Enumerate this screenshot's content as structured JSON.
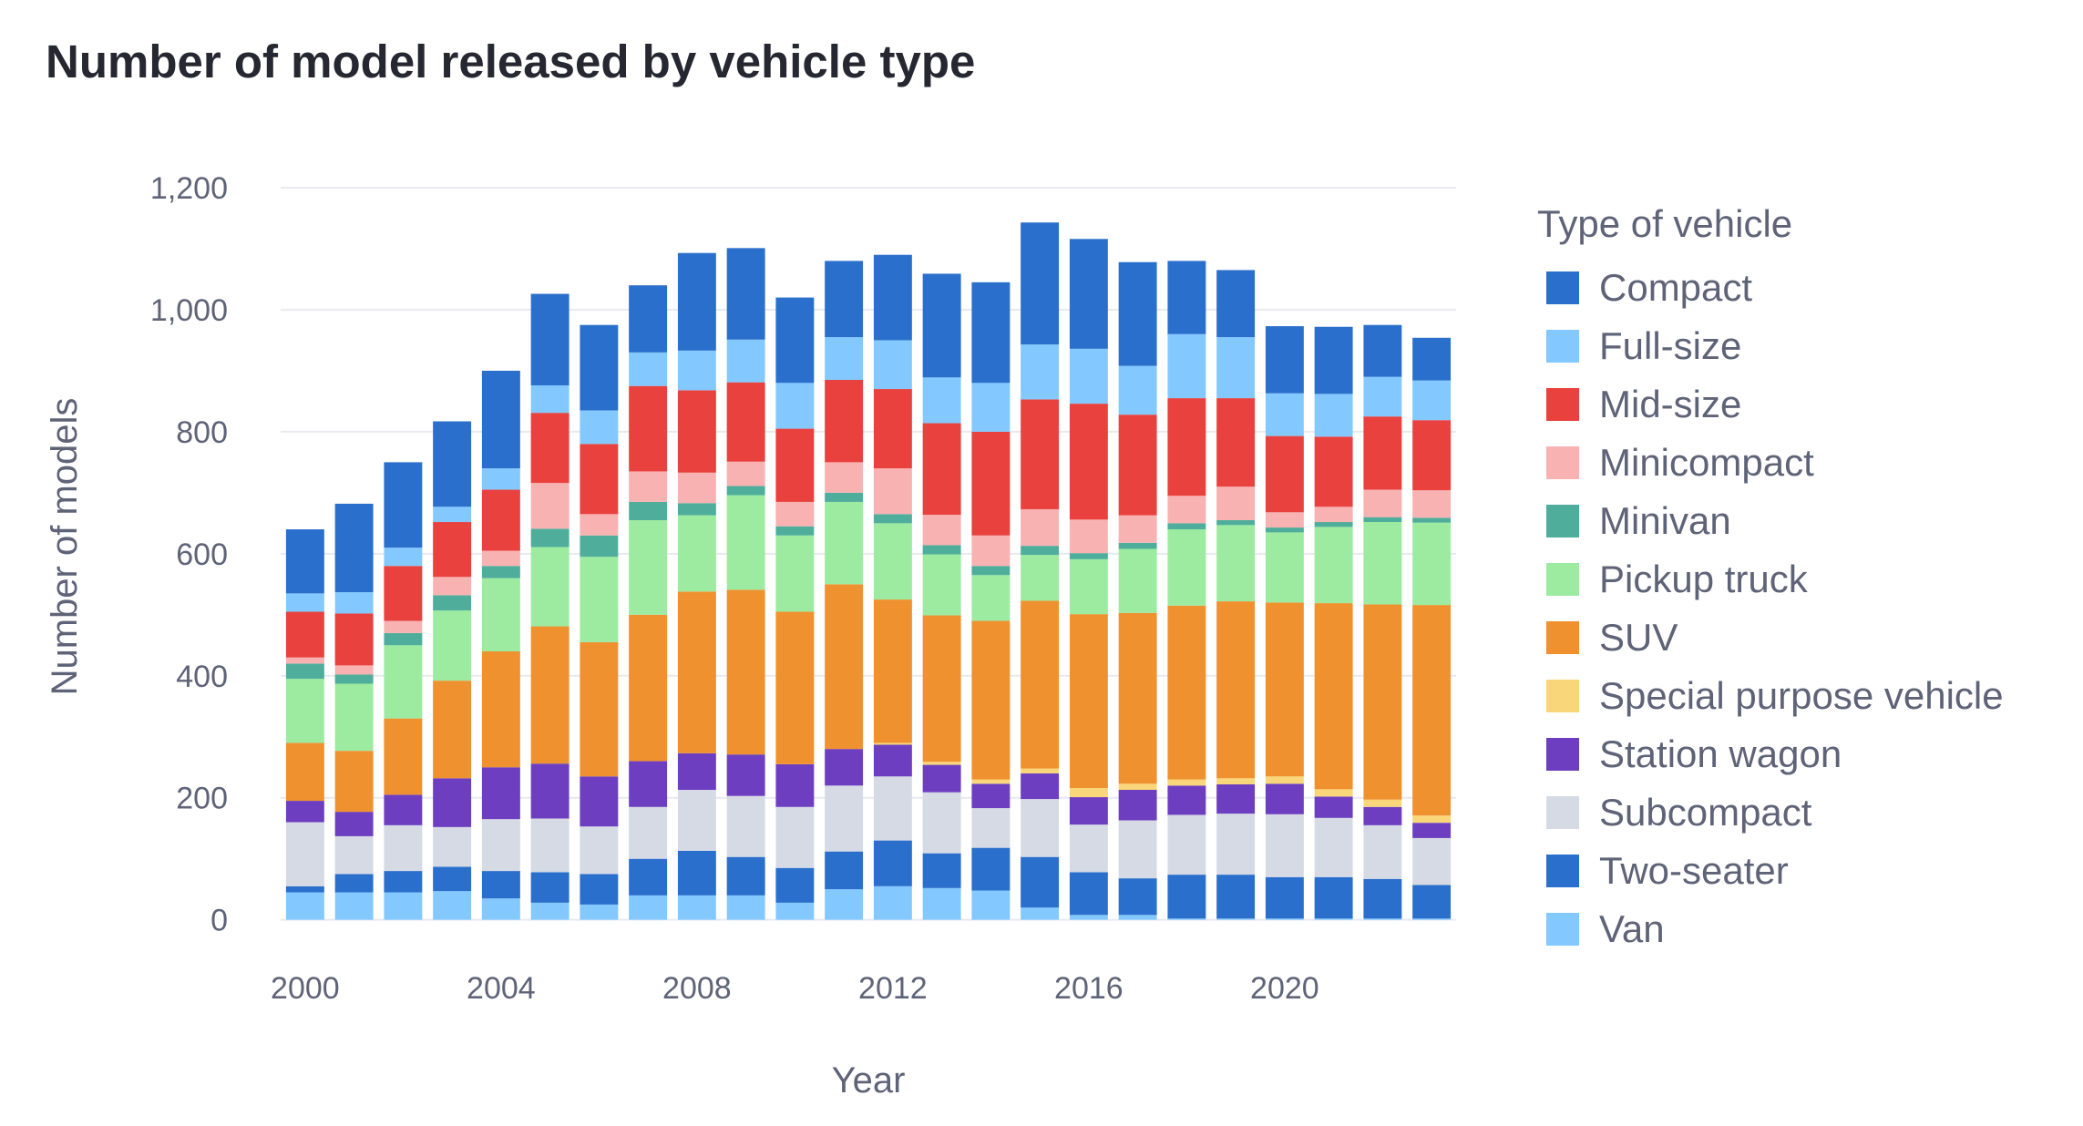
{
  "title": "Number of model released by vehicle type",
  "chart_data": {
    "type": "bar",
    "stacked": true,
    "title": "Number of model released by vehicle type",
    "xlabel": "Year",
    "ylabel": "Number of models",
    "ylim": [
      -5,
      1215
    ],
    "yticks": [
      0,
      200,
      400,
      600,
      800,
      1000,
      1200
    ],
    "ytick_labels": [
      "0",
      "200",
      "400",
      "600",
      "800",
      "1,000",
      "1,200"
    ],
    "xticks": [
      "2000",
      "2004",
      "2008",
      "2012",
      "2016",
      "2020"
    ],
    "legend_title": "Type of vehicle",
    "legend_position": "right",
    "grid": true,
    "categories": [
      "2000",
      "2001",
      "2002",
      "2003",
      "2004",
      "2005",
      "2006",
      "2007",
      "2008",
      "2009",
      "2010",
      "2011",
      "2012",
      "2013",
      "2014",
      "2015",
      "2016",
      "2017",
      "2018",
      "2019",
      "2020",
      "2021",
      "2022",
      "2023"
    ],
    "series": [
      {
        "name": "Van",
        "color": "#83c9ff",
        "values": [
          45,
          45,
          45,
          47,
          35,
          28,
          25,
          40,
          40,
          40,
          28,
          50,
          55,
          52,
          48,
          20,
          8,
          8,
          2,
          2,
          2,
          2,
          2,
          2
        ]
      },
      {
        "name": "Two-seater",
        "color": "#2b6fcc",
        "values": [
          10,
          30,
          35,
          40,
          45,
          50,
          50,
          60,
          73,
          63,
          57,
          62,
          75,
          57,
          70,
          83,
          70,
          60,
          72,
          72,
          68,
          68,
          65,
          55
        ]
      },
      {
        "name": "Subcompact",
        "color": "#d5dae5",
        "values": [
          105,
          62,
          75,
          65,
          85,
          88,
          78,
          85,
          100,
          100,
          100,
          108,
          105,
          100,
          65,
          95,
          78,
          95,
          98,
          100,
          103,
          97,
          88,
          77
        ]
      },
      {
        "name": "Station wagon",
        "color": "#6d3fc0",
        "values": [
          35,
          40,
          50,
          80,
          85,
          90,
          82,
          75,
          60,
          68,
          70,
          60,
          52,
          45,
          40,
          42,
          45,
          50,
          48,
          48,
          50,
          35,
          30,
          25
        ]
      },
      {
        "name": "Special purpose vehicle",
        "color": "#f9d67a",
        "values": [
          0,
          0,
          0,
          0,
          0,
          0,
          0,
          0,
          0,
          0,
          0,
          0,
          3,
          5,
          7,
          8,
          15,
          10,
          10,
          10,
          12,
          12,
          12,
          12
        ]
      },
      {
        "name": "SUV",
        "color": "#f0912f",
        "values": [
          95,
          100,
          125,
          160,
          190,
          225,
          220,
          240,
          265,
          270,
          250,
          270,
          235,
          240,
          260,
          275,
          285,
          280,
          285,
          290,
          285,
          305,
          320,
          345
        ]
      },
      {
        "name": "Pickup truck",
        "color": "#9ceba1",
        "values": [
          105,
          110,
          120,
          115,
          120,
          130,
          140,
          155,
          125,
          155,
          125,
          135,
          125,
          100,
          75,
          75,
          90,
          105,
          125,
          125,
          115,
          125,
          135,
          135
        ]
      },
      {
        "name": "Minivan",
        "color": "#4fae9b",
        "values": [
          25,
          15,
          20,
          25,
          20,
          30,
          35,
          30,
          20,
          15,
          15,
          15,
          15,
          15,
          15,
          15,
          10,
          10,
          10,
          8,
          8,
          8,
          8,
          8
        ]
      },
      {
        "name": "Minicompact",
        "color": "#f8b2b2",
        "values": [
          10,
          15,
          20,
          30,
          25,
          75,
          35,
          50,
          50,
          40,
          40,
          50,
          75,
          50,
          50,
          60,
          55,
          45,
          45,
          55,
          25,
          25,
          45,
          45
        ]
      },
      {
        "name": "Mid-size",
        "color": "#e9413e",
        "values": [
          75,
          85,
          90,
          90,
          100,
          115,
          115,
          140,
          135,
          130,
          120,
          135,
          130,
          150,
          170,
          180,
          190,
          165,
          160,
          145,
          125,
          115,
          120,
          115
        ]
      },
      {
        "name": "Full-size",
        "color": "#83c9ff",
        "values": [
          30,
          35,
          30,
          25,
          35,
          45,
          55,
          55,
          65,
          70,
          75,
          70,
          80,
          75,
          80,
          90,
          90,
          80,
          105,
          100,
          70,
          70,
          65,
          65
        ]
      },
      {
        "name": "Compact",
        "color": "#2b6fcc",
        "values": [
          105,
          145,
          140,
          140,
          160,
          150,
          140,
          110,
          160,
          150,
          140,
          125,
          140,
          170,
          165,
          200,
          180,
          170,
          120,
          110,
          110,
          110,
          85,
          70
        ]
      }
    ]
  }
}
